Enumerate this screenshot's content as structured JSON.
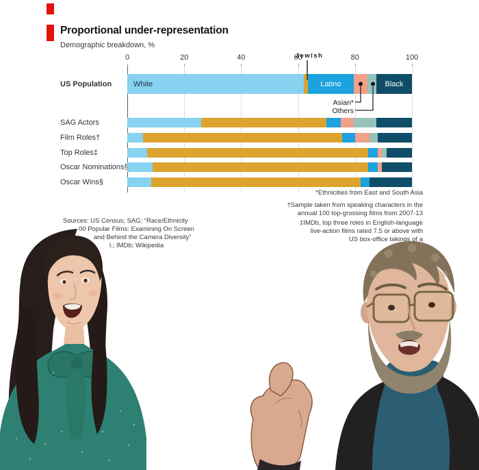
{
  "brand": {
    "accent_color": "#E3120B"
  },
  "chart": {
    "title": "Proportional under-representation",
    "subtitle": "Demographic breakdown, %",
    "callouts": {
      "jewish": "Jewish",
      "asian": "Asian*",
      "others": "Others"
    },
    "inline_labels": {
      "White": "White",
      "Latino": "Latino",
      "Black": "Black"
    },
    "footnotes": [
      "*Ethnicities from East and South Asia",
      "†Sample taken from speaking characters in the",
      "annual 100 top-grossing films from 2007-13",
      "‡IMDb, top three roles in English-language",
      "live-action films rated 7.5 or above with",
      "US box-office takings of a"
    ],
    "sources": [
      "Sources: US Census; SAG; “Race/Ethnicity",
      "00 Popular Films: Examining On Screen",
      "and Behind the Camera Diversity”",
      "l.; IMDb; Wikipedia"
    ]
  },
  "chart_data": {
    "type": "bar",
    "orientation": "horizontal",
    "stacked": true,
    "title": "Proportional under-representation",
    "subtitle": "Demographic breakdown, %",
    "categories": [
      "US Population",
      "SAG Actors",
      "Film Roles†",
      "Top Roles‡",
      "Oscar Nominations§",
      "Oscar Wins§"
    ],
    "series": [
      {
        "name": "White",
        "color": "#87D1F1",
        "values": [
          62,
          26,
          5.5,
          7,
          9,
          8.5
        ]
      },
      {
        "name": "Jewish",
        "color": "#DCA42E",
        "values": [
          1.5,
          44,
          70,
          77.5,
          75.5,
          73.5
        ]
      },
      {
        "name": "Latino",
        "color": "#1CA2DE",
        "values": [
          16,
          5,
          4.5,
          3.5,
          3.5,
          3
        ]
      },
      {
        "name": "Asian*",
        "color": "#F2A089",
        "values": [
          5,
          4.5,
          5,
          1.5,
          1.5,
          0
        ]
      },
      {
        "name": "Others",
        "color": "#96C2BA",
        "values": [
          3,
          8,
          3,
          1.5,
          0,
          0
        ]
      },
      {
        "name": "Black",
        "color": "#0F4D68",
        "values": [
          12.5,
          12.5,
          12,
          9,
          10.5,
          15
        ]
      }
    ],
    "xlim": [
      0,
      100
    ],
    "x_ticks": [
      0,
      20,
      40,
      60,
      80,
      100
    ],
    "grid": true,
    "legend_position": "none",
    "annotations": [
      "Jewish marker at 63 on US Population bar",
      "Asian* and Others leader-line callouts under US Population bar"
    ]
  }
}
